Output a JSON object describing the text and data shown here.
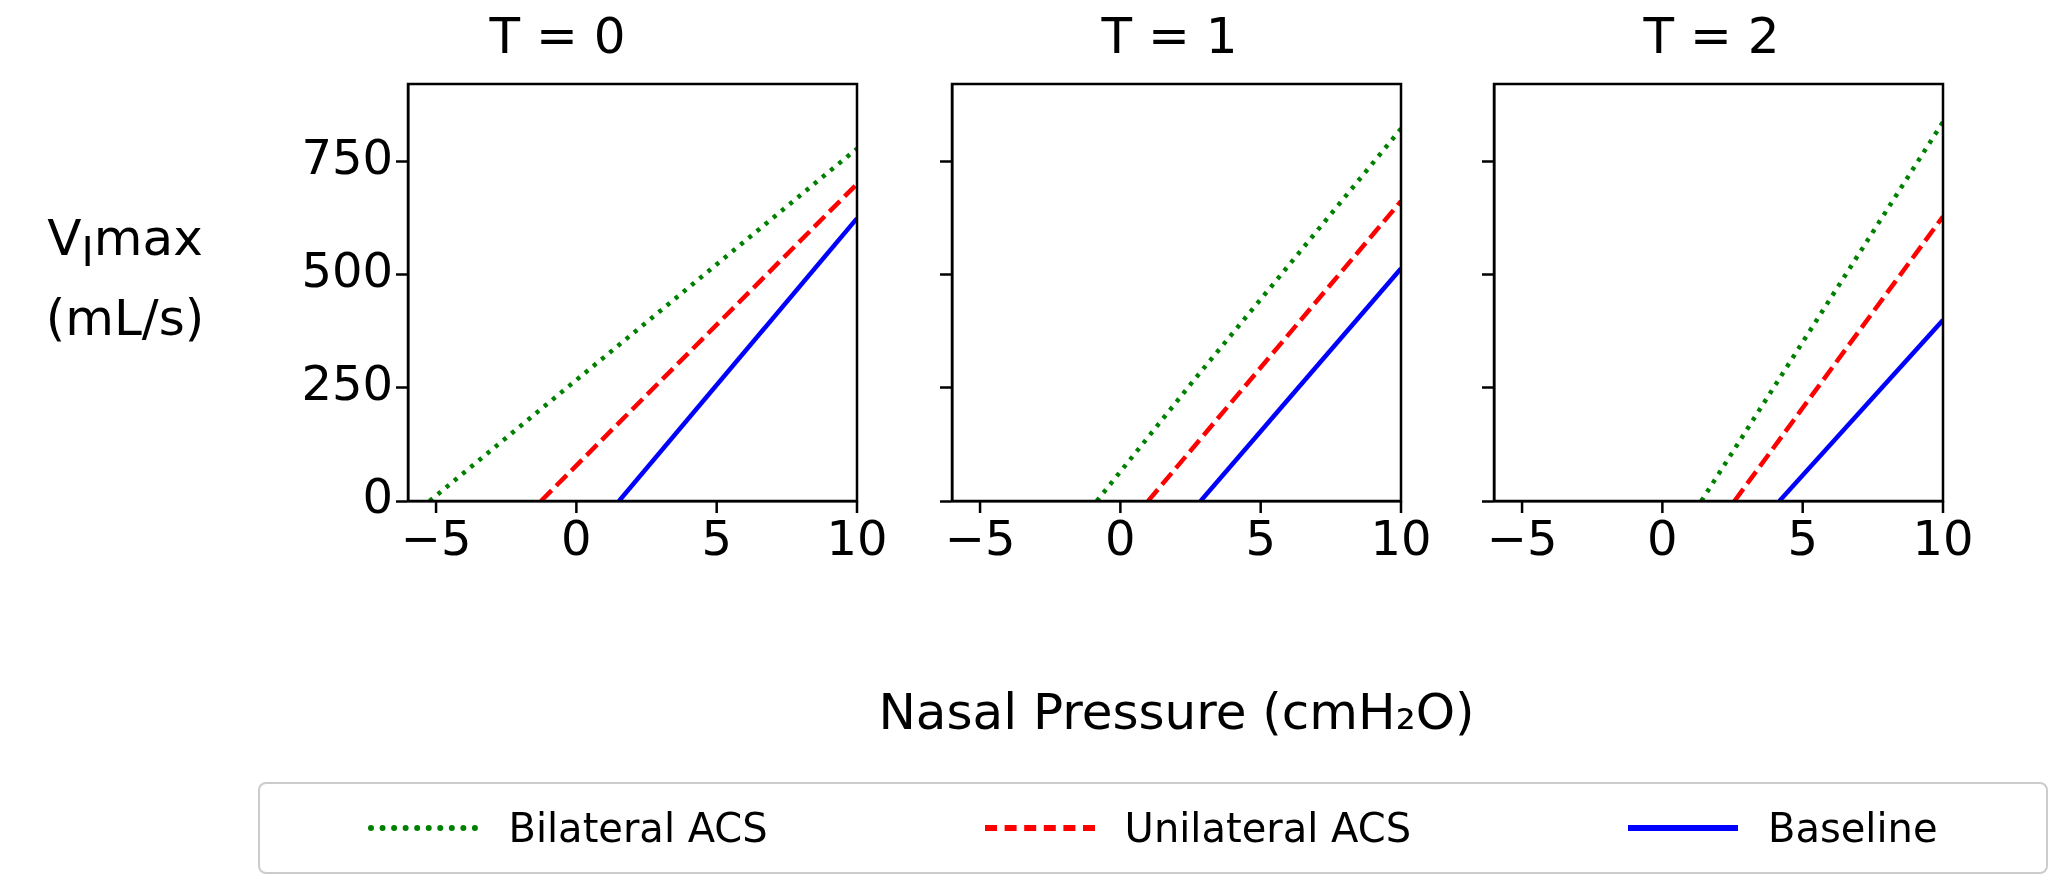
{
  "chart_data": [
    {
      "type": "line",
      "title": "T = 0",
      "ylabel": "V$_{I}$max (mL/s)",
      "legend": "bottom",
      "xlim": [
        -6,
        10
      ],
      "ylim": [
        0,
        922
      ],
      "xticks": [
        -5,
        0,
        5,
        10
      ],
      "yticks": [
        0,
        250,
        500,
        750
      ],
      "series": [
        {
          "name": "Bilateral ACS",
          "color": "#008000",
          "line_style": "dotted",
          "x": [
            -5.23,
            10
          ],
          "values": [
            0,
            779
          ]
        },
        {
          "name": "Unilateral ACS",
          "color": "#ff0000",
          "line_style": "dashed",
          "x": [
            -1.26,
            10
          ],
          "values": [
            0,
            701
          ]
        },
        {
          "name": "Baseline",
          "color": "#0000ff",
          "line_style": "solid",
          "x": [
            1.52,
            10
          ],
          "values": [
            0,
            625
          ]
        }
      ]
    },
    {
      "type": "line",
      "title": "T = 1",
      "xlabel": "Nasal Pressure (cmH₂O)",
      "tick_labels": "x",
      "xlim": [
        -6,
        10
      ],
      "ylim": [
        0,
        922
      ],
      "xticks": [
        -5,
        0,
        5,
        10
      ],
      "yticks": [
        0,
        250,
        500,
        750
      ],
      "series": [
        {
          "color": "#008000",
          "line_style": "dotted",
          "x": [
            -0.84,
            2.67,
            5.64,
            7.63,
            10
          ],
          "values": [
            0,
            271,
            494,
            644,
            823
          ]
        },
        {
          "color": "#ff0000",
          "line_style": "dashed",
          "x": [
            0.99,
            10
          ],
          "values": [
            0,
            663
          ]
        },
        {
          "color": "#0000ff",
          "line_style": "solid",
          "x": [
            2.86,
            10
          ],
          "values": [
            0,
            514
          ]
        }
      ]
    },
    {
      "type": "line",
      "title": "T = 2",
      "tick_labels": "x",
      "xlim": [
        -6,
        10
      ],
      "ylim": [
        0,
        922
      ],
      "xticks": [
        -5,
        0,
        5,
        10
      ],
      "yticks": [
        0,
        250,
        500,
        750
      ],
      "series": [
        {
          "color": "#008000",
          "line_style": "dotted",
          "x": [
            1.39,
            10
          ],
          "values": [
            0,
            838
          ]
        },
        {
          "color": "#ff0000",
          "line_style": "dashed",
          "x": [
            2.57,
            10
          ],
          "values": [
            0,
            629
          ]
        },
        {
          "color": "#0000ff",
          "line_style": "solid",
          "x": [
            4.17,
            10
          ],
          "values": [
            0,
            400
          ]
        }
      ]
    }
  ]
}
